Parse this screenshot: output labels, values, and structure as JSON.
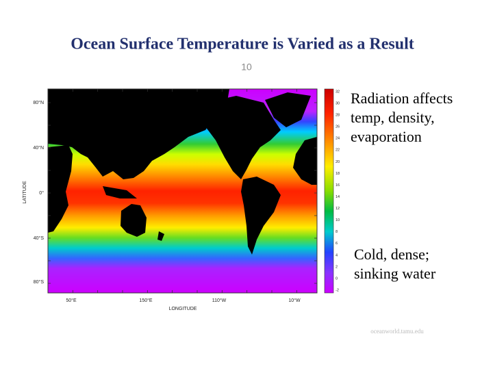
{
  "header": {
    "title": "Ocean Surface Temperature is Varied as a Result",
    "page_number": "10"
  },
  "map": {
    "y_axis_label": "LATITUDE",
    "x_axis_label": "LONGITUDE",
    "lat_labels": [
      "80°N",
      "40°N",
      "0°",
      "40°S",
      "80°S"
    ],
    "lon_labels": [
      "50°E",
      "150°E",
      "110°W",
      "10°W"
    ],
    "colorbar_ticks": [
      32,
      30,
      28,
      26,
      24,
      22,
      20,
      18,
      16,
      14,
      12,
      10,
      8,
      6,
      4,
      2,
      0,
      -2
    ]
  },
  "notes": [
    {
      "lines": [
        "Radiation affects",
        "temp, density,",
        "evaporation"
      ]
    },
    {
      "lines": [
        "Cold, dense;",
        "sinking water"
      ]
    }
  ],
  "credit": "oceanworld.tamu.edu"
}
